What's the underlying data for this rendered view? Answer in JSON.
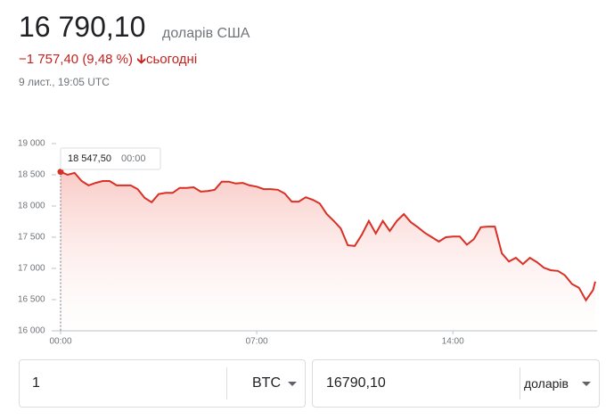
{
  "header": {
    "price": "16 790,10",
    "currency": "доларів США",
    "change": "−1 757,40 (9,48 %)",
    "period": "сьогодні",
    "timestamp": "9 лист., 19:05 UTC"
  },
  "tooltip": {
    "value": "18 547,50",
    "time": "00:00"
  },
  "chart_data": {
    "type": "line",
    "color": "#d93025",
    "x": [
      0,
      15,
      30,
      45,
      60,
      75,
      90,
      105,
      120,
      135,
      150,
      165,
      180,
      195,
      210,
      225,
      240,
      255,
      270,
      285,
      300,
      315,
      330,
      345,
      360,
      375,
      390,
      405,
      420,
      435,
      450,
      465,
      480,
      495,
      510,
      525,
      540,
      555,
      570,
      585,
      600,
      615,
      630,
      645,
      660,
      675,
      690,
      705,
      720,
      735,
      750,
      765,
      780,
      795,
      810,
      825,
      840,
      855,
      870,
      885,
      900,
      915,
      930,
      945,
      960,
      975,
      990,
      1005,
      1020,
      1035,
      1050,
      1065,
      1080,
      1095,
      1110,
      1125,
      1140,
      1145
    ],
    "values": [
      18547.5,
      18500,
      18530,
      18400,
      18330,
      18370,
      18400,
      18400,
      18330,
      18330,
      18330,
      18270,
      18130,
      18060,
      18190,
      18210,
      18210,
      18290,
      18290,
      18300,
      18230,
      18240,
      18260,
      18390,
      18390,
      18360,
      18370,
      18330,
      18310,
      18270,
      18270,
      18260,
      18200,
      18070,
      18070,
      18140,
      18100,
      18040,
      17870,
      17760,
      17640,
      17370,
      17360,
      17540,
      17760,
      17560,
      17760,
      17600,
      17760,
      17870,
      17740,
      17660,
      17570,
      17500,
      17430,
      17500,
      17510,
      17510,
      17380,
      17470,
      17660,
      17670,
      17670,
      17240,
      17110,
      17170,
      17070,
      17170,
      17100,
      17010,
      16970,
      16960,
      16890,
      16750,
      16690,
      16490,
      16650,
      16790.1
    ],
    "xlim": [
      0,
      1145
    ],
    "xticks": [
      {
        "value": 0,
        "label": "00:00"
      },
      {
        "value": 420,
        "label": "07:00"
      },
      {
        "value": 840,
        "label": "14:00"
      }
    ],
    "ylim": [
      16000,
      19000
    ],
    "yticks": [
      {
        "value": 16000,
        "label": "16 000"
      },
      {
        "value": 16500,
        "label": "16 500"
      },
      {
        "value": 17000,
        "label": "17 000"
      },
      {
        "value": 17500,
        "label": "17 500"
      },
      {
        "value": 18000,
        "label": "18 000"
      },
      {
        "value": 18500,
        "label": "18 500"
      },
      {
        "value": 19000,
        "label": "19 000"
      }
    ]
  },
  "converter": {
    "amount": "1",
    "from": "BTC",
    "result": "16790,10",
    "to": "доларів"
  }
}
